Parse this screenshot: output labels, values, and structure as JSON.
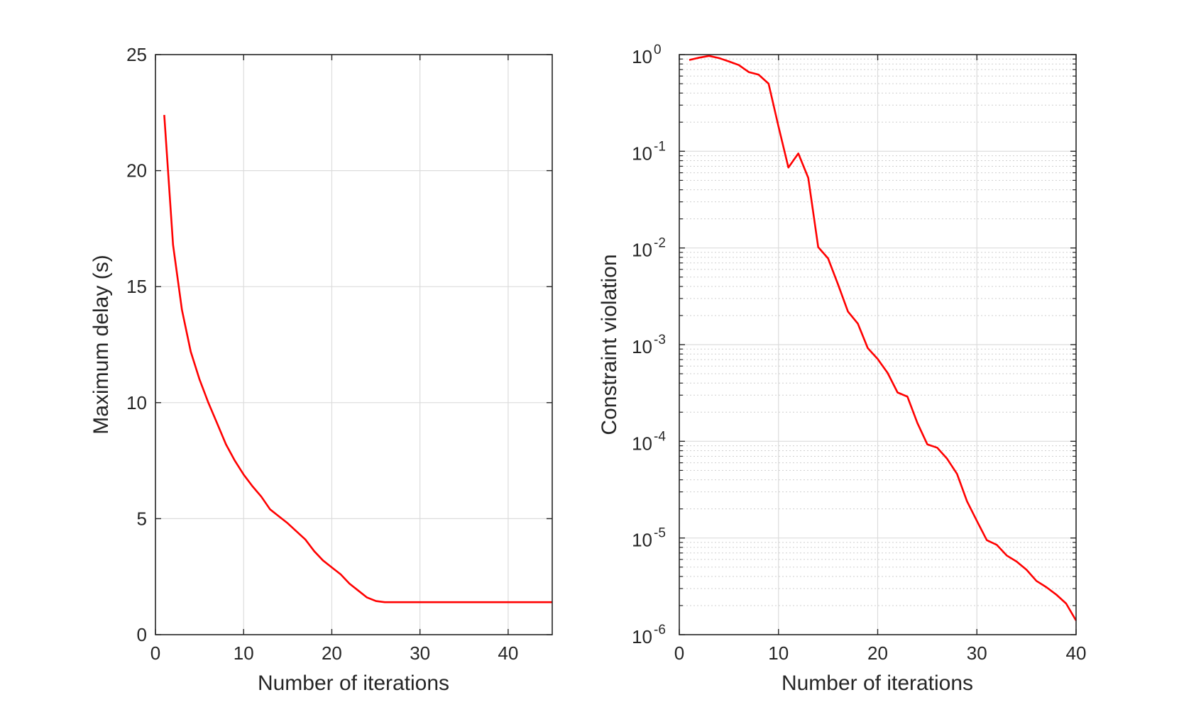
{
  "chart_data": [
    {
      "type": "line",
      "title": "",
      "xlabel": "Number of iterations",
      "ylabel": "Maximum delay (s)",
      "xlim": [
        0,
        45
      ],
      "ylim": [
        0,
        25
      ],
      "xticks": [
        "0",
        "10",
        "20",
        "30",
        "40"
      ],
      "yticks": [
        "0",
        "5",
        "10",
        "15",
        "20",
        "25"
      ],
      "grid": true,
      "color": "#ff0000",
      "x": [
        1,
        2,
        3,
        4,
        5,
        6,
        7,
        8,
        9,
        10,
        11,
        12,
        13,
        14,
        15,
        16,
        17,
        18,
        19,
        20,
        21,
        22,
        23,
        24,
        25,
        26,
        27,
        28,
        29,
        30,
        31,
        32,
        33,
        34,
        35,
        36,
        37,
        38,
        39,
        40,
        41,
        42,
        43,
        44,
        45
      ],
      "y": [
        22.4,
        16.8,
        14.0,
        12.2,
        11.0,
        10.0,
        9.1,
        8.2,
        7.5,
        6.9,
        6.4,
        5.95,
        5.4,
        5.1,
        4.8,
        4.45,
        4.1,
        3.6,
        3.2,
        2.9,
        2.6,
        2.2,
        1.9,
        1.6,
        1.45,
        1.4,
        1.4,
        1.4,
        1.4,
        1.4,
        1.4,
        1.4,
        1.4,
        1.4,
        1.4,
        1.4,
        1.4,
        1.4,
        1.4,
        1.4,
        1.4,
        1.4,
        1.4,
        1.4,
        1.4
      ]
    },
    {
      "type": "line",
      "title": "",
      "xlabel": "Number of iterations",
      "ylabel": "Constraint violation",
      "yscale": "log",
      "xlim": [
        0,
        40
      ],
      "ylim": [
        1e-06,
        1
      ],
      "xticks": [
        "0",
        "10",
        "20",
        "30",
        "40"
      ],
      "ytick_base": "10",
      "ytick_exponents": [
        "-6",
        "-5",
        "-4",
        "-3",
        "-2",
        "-1",
        "0"
      ],
      "grid": true,
      "minor_grid": true,
      "color": "#ff0000",
      "x": [
        1,
        2,
        3,
        4,
        5,
        6,
        7,
        8,
        9,
        10,
        11,
        12,
        13,
        14,
        15,
        16,
        17,
        18,
        19,
        20,
        21,
        22,
        23,
        24,
        25,
        26,
        27,
        28,
        29,
        30,
        31,
        32,
        33,
        34,
        35,
        36,
        37,
        38,
        39,
        40
      ],
      "y": [
        0.88,
        0.93,
        0.97,
        0.92,
        0.85,
        0.78,
        0.66,
        0.62,
        0.5,
        0.18,
        0.068,
        0.095,
        0.053,
        0.0102,
        0.0078,
        0.0042,
        0.0022,
        0.00165,
        0.00092,
        0.00071,
        0.00051,
        0.00032,
        0.00029,
        0.000155,
        9.3e-05,
        8.6e-05,
        6.6e-05,
        4.6e-05,
        2.4e-05,
        1.5e-05,
        9.5e-06,
        8.5e-06,
        6.6e-06,
        5.7e-06,
        4.7e-06,
        3.6e-06,
        3.1e-06,
        2.6e-06,
        2.1e-06,
        1.4e-06
      ]
    }
  ]
}
